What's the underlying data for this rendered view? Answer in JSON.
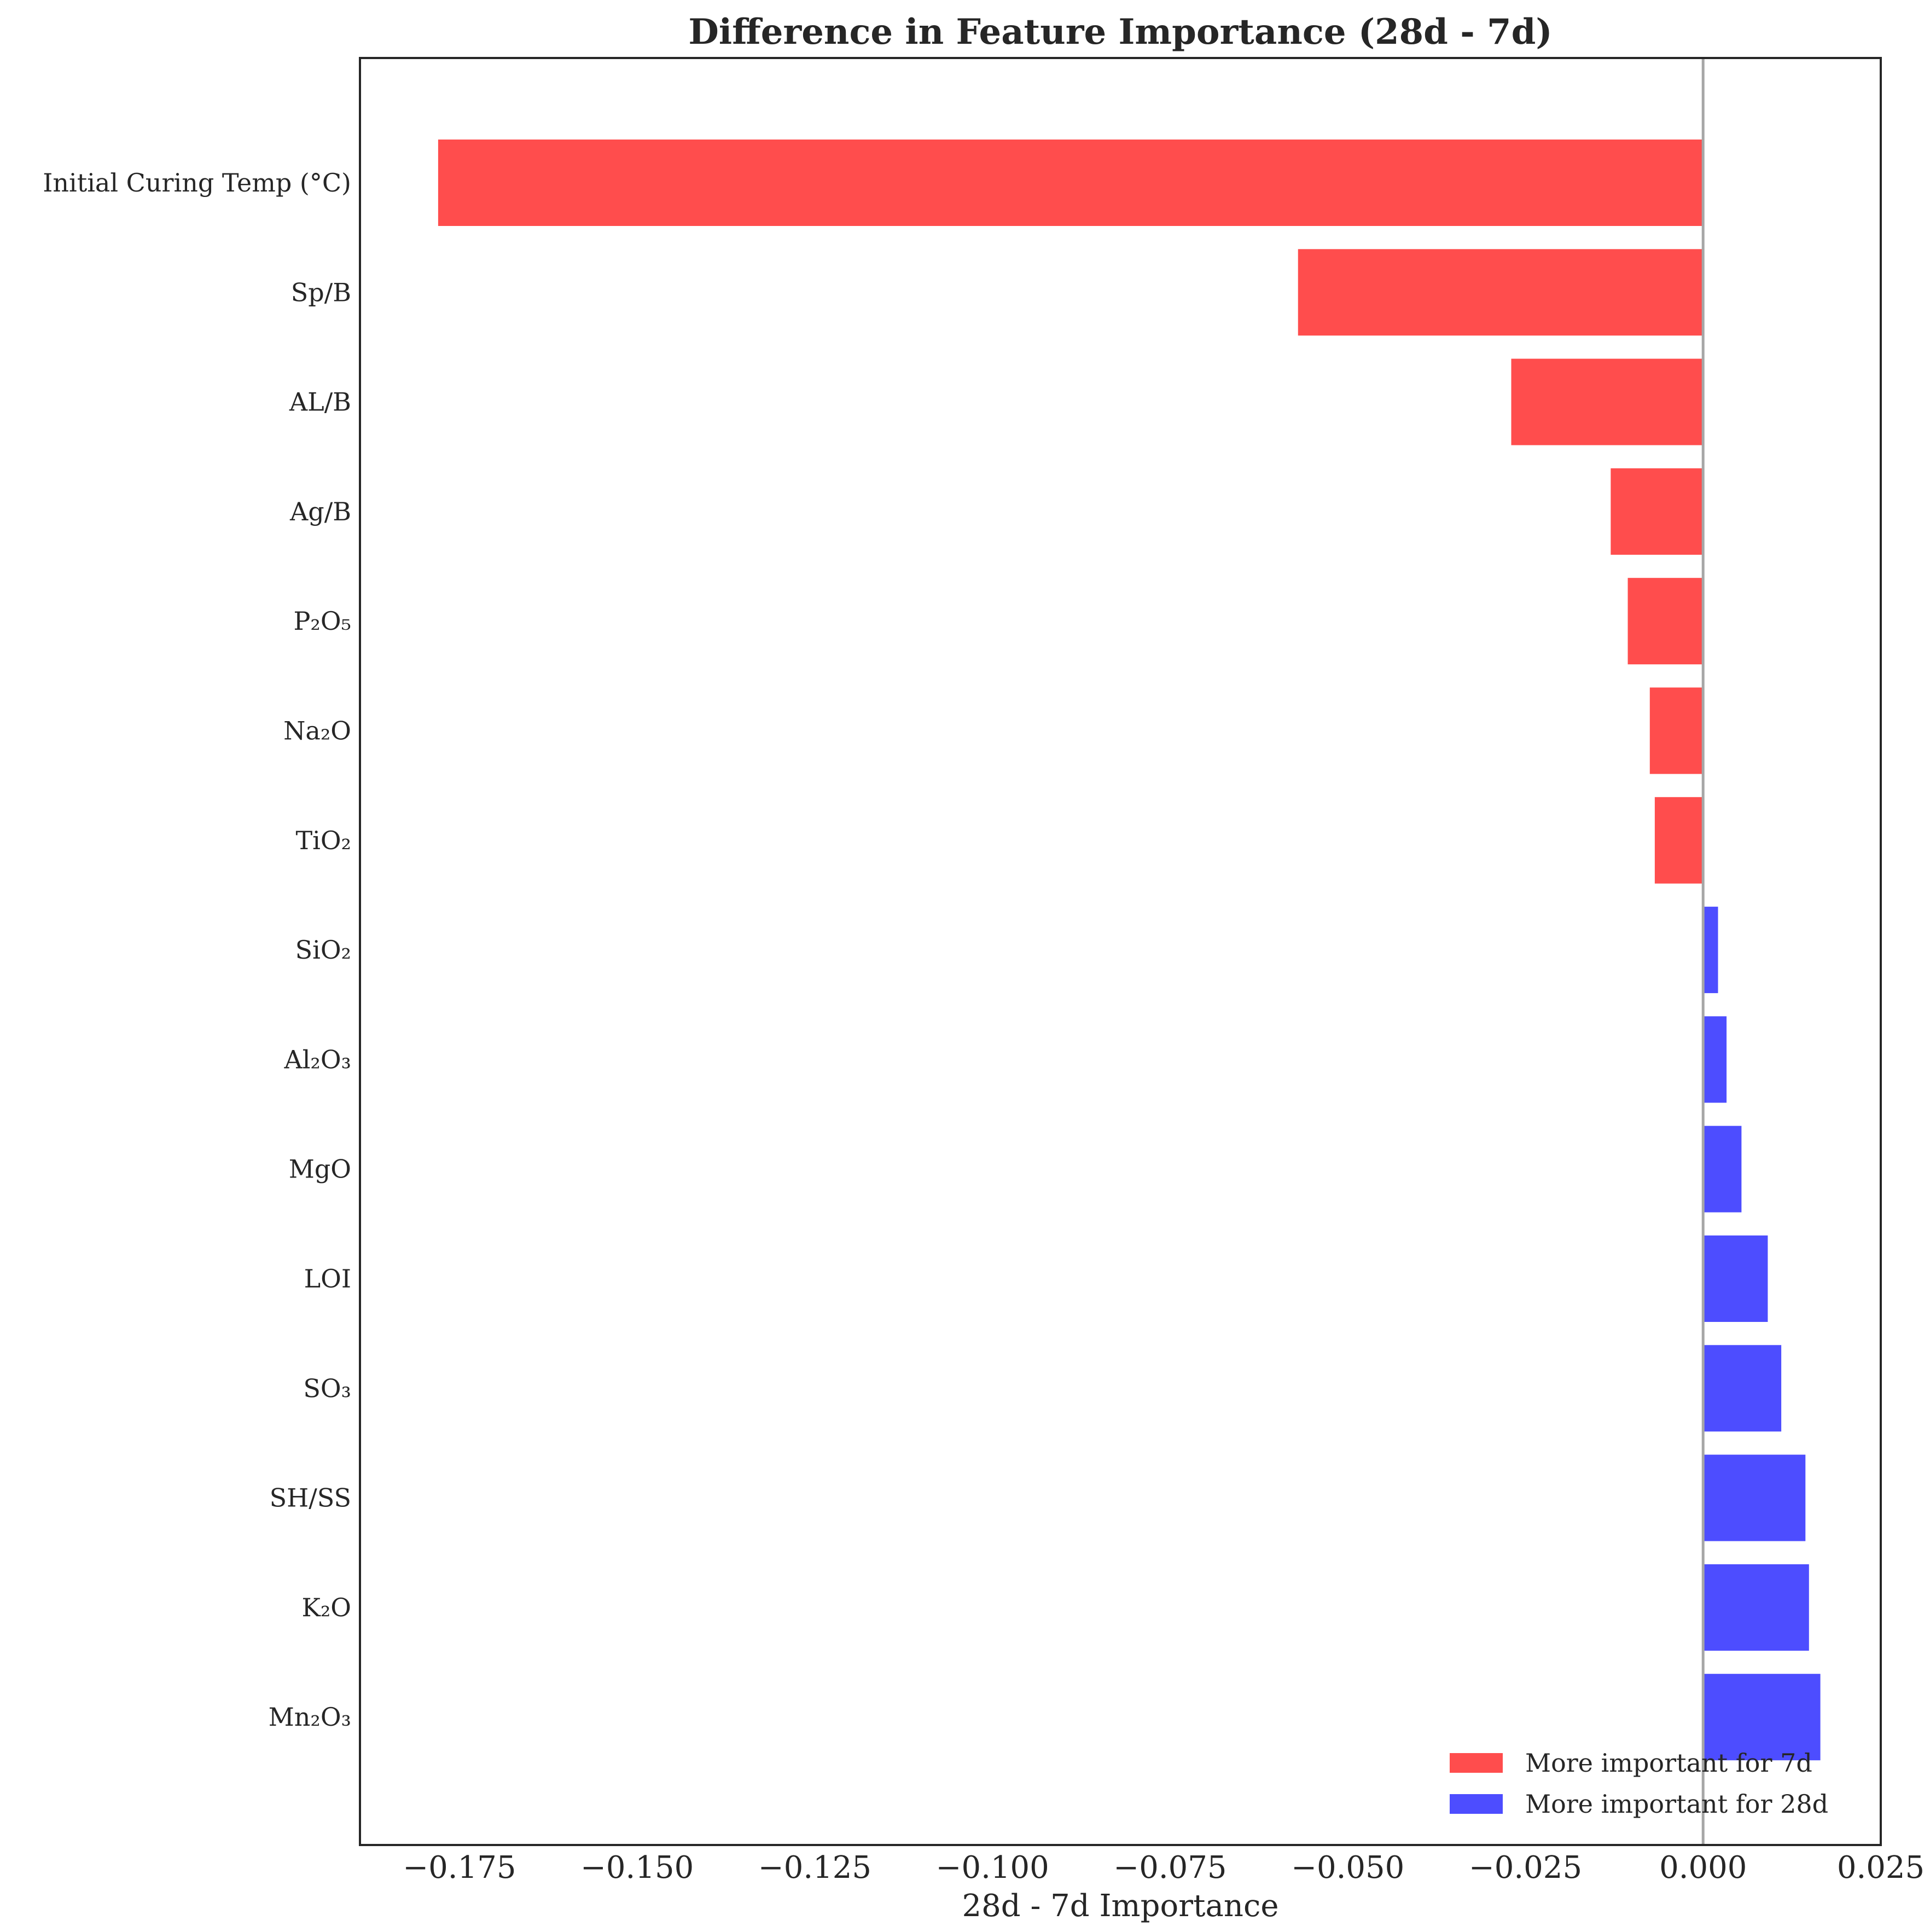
{
  "chart_data": {
    "type": "bar",
    "orientation": "horizontal",
    "title": "Difference in Feature Importance (28d - 7d)",
    "xlabel": "28d - 7d Importance",
    "ylabel": "",
    "categories": [
      "Initial Curing Temp (°C)",
      "Sp/B",
      "AL/B",
      "Ag/B",
      "P₂O₅",
      "Na₂O",
      "TiO₂",
      "SiO₂",
      "Al₂O₃",
      "MgO",
      "LOI",
      "SO₃",
      "SH/SS",
      "K₂O",
      "Mn₂O₃"
    ],
    "values": [
      -0.178,
      -0.057,
      -0.027,
      -0.013,
      -0.0106,
      -0.0075,
      -0.0068,
      0.0021,
      0.0033,
      0.0054,
      0.0091,
      0.011,
      0.0144,
      0.0149,
      0.0165
    ],
    "xlim": [
      -0.189,
      0.025
    ],
    "xticks": [
      "−0.175",
      "−0.150",
      "−0.125",
      "−0.100",
      "−0.075",
      "−0.050",
      "−0.025",
      "0.000",
      "0.025"
    ],
    "xtick_values": [
      -0.175,
      -0.15,
      -0.125,
      -0.1,
      -0.075,
      -0.05,
      -0.025,
      0.0,
      0.025
    ],
    "grid": false,
    "legend": {
      "placement": "lower-right",
      "entries": [
        {
          "label": "More important for 7d",
          "color": "#ff4d4d"
        },
        {
          "label": "More important for 28d",
          "color": "#4d4dff"
        }
      ]
    },
    "colors": {
      "negative": "#ff4d4d",
      "positive": "#4d4dff",
      "zero_line": "#a6a6a6"
    }
  }
}
